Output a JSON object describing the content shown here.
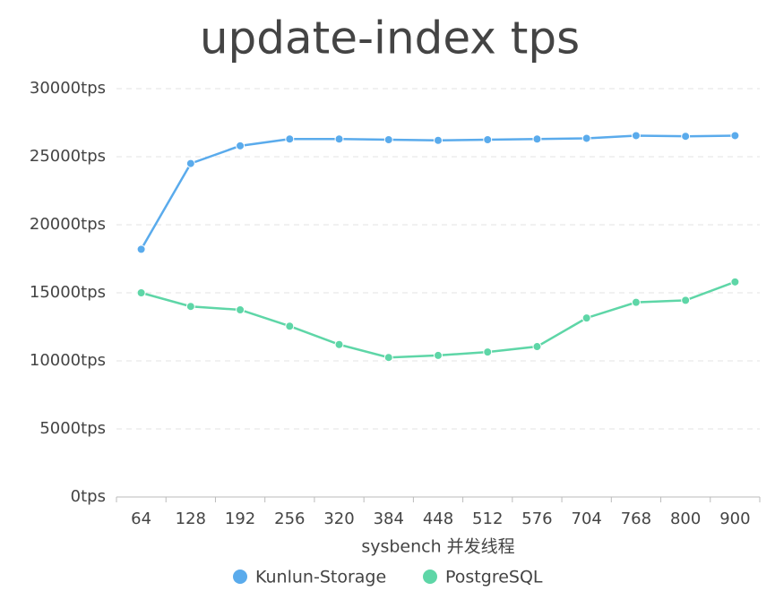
{
  "chart_data": {
    "type": "line",
    "title": "update-index tps",
    "x_label": "sysbench 并发线程",
    "categories": [
      "64",
      "128",
      "192",
      "256",
      "320",
      "384",
      "448",
      "512",
      "576",
      "704",
      "768",
      "800",
      "900"
    ],
    "series": [
      {
        "name": "Kunlun-Storage",
        "color": "#5aabec",
        "values": [
          18200,
          24500,
          25800,
          26300,
          26300,
          26250,
          26200,
          26250,
          26300,
          26350,
          26550,
          26500,
          26550
        ]
      },
      {
        "name": "PostgreSQL",
        "color": "#5ed6a7",
        "values": [
          15000,
          14000,
          13750,
          12550,
          11200,
          10250,
          10400,
          10650,
          11050,
          13150,
          14300,
          14450,
          15800
        ]
      }
    ],
    "ylim": [
      0,
      30000
    ],
    "yticks": [
      {
        "value": 0,
        "label": "0tps"
      },
      {
        "value": 5000,
        "label": "5000tps"
      },
      {
        "value": 10000,
        "label": "10000tps"
      },
      {
        "value": 15000,
        "label": "15000tps"
      },
      {
        "value": 20000,
        "label": "20000tps"
      },
      {
        "value": 25000,
        "label": "25000tps"
      },
      {
        "value": 30000,
        "label": "30000tps"
      }
    ],
    "grid": true,
    "legend": "bottom"
  }
}
